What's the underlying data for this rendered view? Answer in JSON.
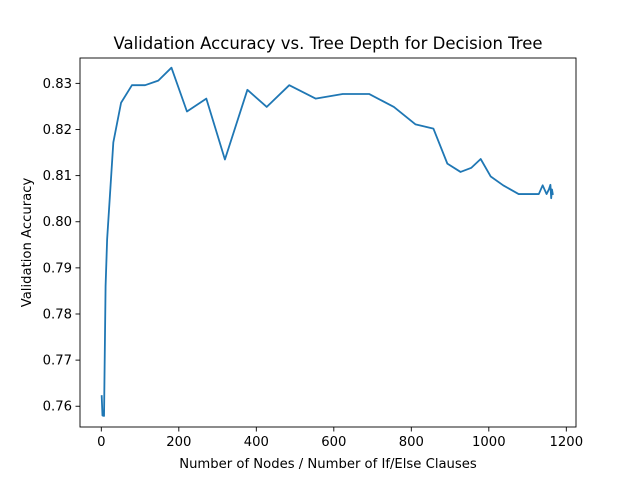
{
  "chart_data": {
    "type": "line",
    "title": "Validation Accuracy vs. Tree Depth for Decision Tree",
    "xlabel": "Number of Nodes / Number of If/Else Clauses",
    "ylabel": "Validation Accuracy",
    "xlim": [
      -55,
      1225
    ],
    "ylim": [
      0.7555,
      0.8355
    ],
    "xticks": [
      0,
      200,
      400,
      600,
      800,
      1000,
      1200
    ],
    "xtick_labels": [
      "0",
      "200",
      "400",
      "600",
      "800",
      "1000",
      "1200"
    ],
    "yticks": [
      0.76,
      0.77,
      0.78,
      0.79,
      0.8,
      0.81,
      0.82,
      0.83
    ],
    "ytick_labels": [
      "0.76",
      "0.77",
      "0.78",
      "0.79",
      "0.80",
      "0.81",
      "0.82",
      "0.83"
    ],
    "grid": false,
    "line_color": "#1f77b4",
    "series": [
      {
        "x": [
          1,
          3,
          7,
          11,
          15,
          31,
          51,
          79,
          113,
          147,
          181,
          221,
          271,
          319,
          377,
          427,
          485,
          553,
          623,
          691,
          755,
          811,
          857,
          893,
          927,
          955,
          979,
          1005,
          1037,
          1077,
          1103,
          1129,
          1139,
          1149,
          1155,
          1159,
          1161,
          1163,
          1165
        ],
        "y": [
          0.7622,
          0.758,
          0.7579,
          0.786,
          0.7962,
          0.8172,
          0.8258,
          0.8296,
          0.8296,
          0.8306,
          0.8334,
          0.8239,
          0.8267,
          0.8135,
          0.8286,
          0.8249,
          0.8296,
          0.8267,
          0.8277,
          0.8277,
          0.8249,
          0.8211,
          0.8202,
          0.8126,
          0.8108,
          0.8117,
          0.8136,
          0.8098,
          0.8079,
          0.806,
          0.806,
          0.806,
          0.8079,
          0.806,
          0.807,
          0.808,
          0.8051,
          0.807,
          0.806
        ]
      }
    ]
  }
}
